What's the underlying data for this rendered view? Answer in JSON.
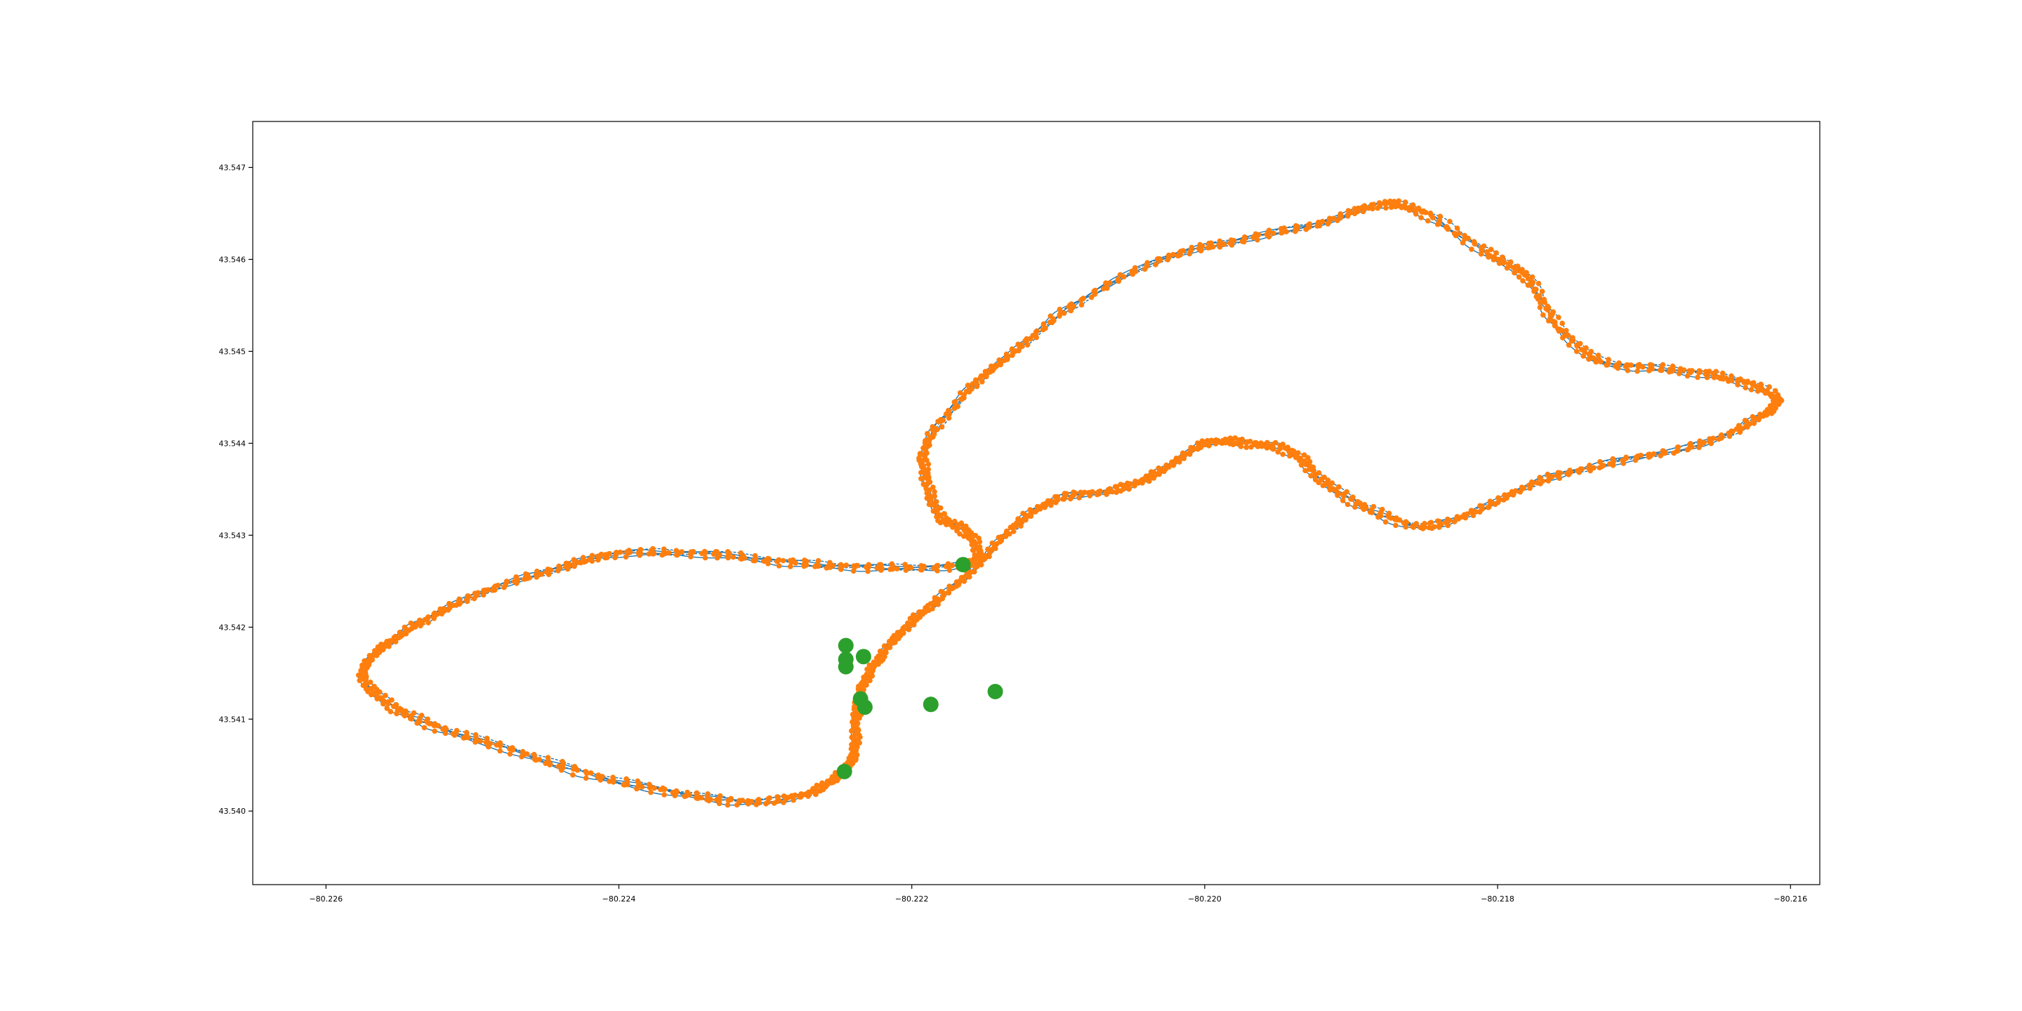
{
  "chart_data": {
    "type": "scatter",
    "title": "",
    "xlabel": "",
    "ylabel": "",
    "xlim": [
      -80.2265,
      -80.2158
    ],
    "ylim": [
      43.5392,
      43.5475
    ],
    "x_ticks": [
      -80.226,
      -80.224,
      -80.222,
      -80.22,
      -80.218,
      -80.216
    ],
    "x_tick_labels": [
      "−80.226",
      "−80.224",
      "−80.222",
      "−80.220",
      "−80.218",
      "−80.216"
    ],
    "y_ticks": [
      43.54,
      43.541,
      43.542,
      43.543,
      43.544,
      43.545,
      43.546,
      43.547
    ],
    "y_tick_labels": [
      "43.540",
      "43.541",
      "43.542",
      "43.543",
      "43.544",
      "43.545",
      "43.546",
      "43.547"
    ],
    "grid": false,
    "colors": {
      "track_line": "#1f77b4",
      "track_points": "#ff7f0e",
      "stops": "#2ca02c"
    },
    "series": [
      {
        "role": "track",
        "points": [
          [
            -80.2216,
            43.5427
          ],
          [
            -80.2222,
            43.54265
          ],
          [
            -80.2228,
            43.5427
          ],
          [
            -80.2234,
            43.5428
          ],
          [
            -80.224,
            43.5428
          ],
          [
            -80.2244,
            43.54265
          ],
          [
            -80.2249,
            43.5424
          ],
          [
            -80.2253,
            43.5421
          ],
          [
            -80.2256,
            43.5418
          ],
          [
            -80.22575,
            43.5415
          ],
          [
            -80.2256,
            43.5412
          ],
          [
            -80.2253,
            43.54095
          ],
          [
            -80.2248,
            43.5407
          ],
          [
            -80.2242,
            43.5404
          ],
          [
            -80.2236,
            43.5402
          ],
          [
            -80.2231,
            43.5401
          ],
          [
            -80.2227,
            43.5402
          ],
          [
            -80.2225,
            43.5404
          ],
          [
            -80.2224,
            43.5406
          ],
          [
            -80.22238,
            43.541
          ],
          [
            -80.22235,
            43.5413
          ],
          [
            -80.22225,
            43.5416
          ],
          [
            -80.2221,
            43.5419
          ],
          [
            -80.2219,
            43.5422
          ],
          [
            -80.2216,
            43.5426
          ],
          [
            -80.2213,
            43.5431
          ],
          [
            -80.221,
            43.5434
          ],
          [
            -80.2206,
            43.5435
          ],
          [
            -80.2203,
            43.5437
          ],
          [
            -80.22,
            43.544
          ],
          [
            -80.2197,
            43.544
          ],
          [
            -80.2194,
            43.5439
          ],
          [
            -80.2192,
            43.5436
          ],
          [
            -80.2189,
            43.5433
          ],
          [
            -80.2185,
            43.5431
          ],
          [
            -80.2181,
            43.5433
          ],
          [
            -80.2177,
            43.5436
          ],
          [
            -80.2172,
            43.5438
          ],
          [
            -80.2166,
            43.544
          ],
          [
            -80.2162,
            43.5443
          ],
          [
            -80.2161,
            43.5445
          ],
          [
            -80.2164,
            43.5447
          ],
          [
            -80.2168,
            43.5448
          ],
          [
            -80.2173,
            43.5449
          ],
          [
            -80.2176,
            43.5453
          ],
          [
            -80.2178,
            43.5458
          ],
          [
            -80.2181,
            43.5461
          ],
          [
            -80.2185,
            43.5465
          ],
          [
            -80.2188,
            43.5466
          ],
          [
            -80.2192,
            43.5464
          ],
          [
            -80.2198,
            43.5462
          ],
          [
            -80.2203,
            43.546
          ],
          [
            -80.2209,
            43.5455
          ],
          [
            -80.2213,
            43.545
          ],
          [
            -80.2216,
            43.5446
          ],
          [
            -80.2219,
            43.544
          ],
          [
            -80.2219,
            43.5436
          ],
          [
            -80.2218,
            43.5432
          ],
          [
            -80.2216,
            43.543
          ],
          [
            -80.2216,
            43.5427
          ]
        ]
      },
      {
        "role": "stops",
        "points": [
          [
            -80.22165,
            43.54268
          ],
          [
            -80.22245,
            43.5418
          ],
          [
            -80.22245,
            43.54165
          ],
          [
            -80.22233,
            43.54168
          ],
          [
            -80.22245,
            43.54157
          ],
          [
            -80.22235,
            43.54122
          ],
          [
            -80.22232,
            43.54113
          ],
          [
            -80.22187,
            43.54116
          ],
          [
            -80.22143,
            43.5413
          ],
          [
            -80.22246,
            43.54043
          ]
        ]
      }
    ]
  }
}
